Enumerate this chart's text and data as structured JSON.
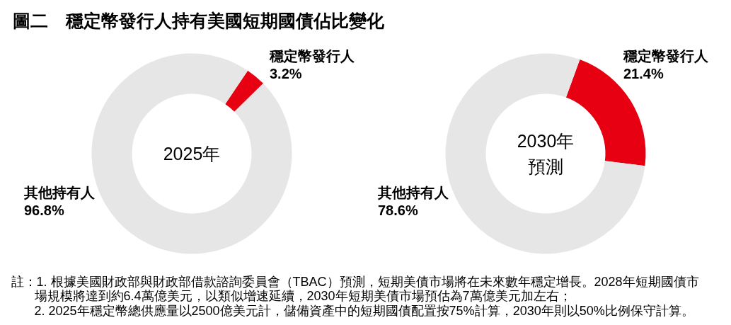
{
  "chart_data": [
    {
      "type": "other",
      "title": "圖二　穩定幣發行人持有美國短期國債佔比變化"
    },
    {
      "type": "donut",
      "title": "2025年",
      "categories": [
        "穩定幣發行人",
        "其他持有人"
      ],
      "values": [
        3.2,
        96.8
      ],
      "colors": [
        "#e60012",
        "#e6e6e6"
      ],
      "value_labels": [
        "3.2%",
        "96.8%"
      ]
    },
    {
      "type": "donut",
      "title": "2030年預測",
      "categories": [
        "穩定幣發行人",
        "其他持有人"
      ],
      "values": [
        21.4,
        78.6
      ],
      "colors": [
        "#e60012",
        "#e6e6e6"
      ],
      "value_labels": [
        "21.4%",
        "78.6%"
      ]
    },
    {
      "type": "other",
      "annotations": [
        "註：1. 根據美國財政部與財政部借款諮詢委員會（TBAC）預測，短期美債市場將在未來數年穩定增長。2028年短期國債市場規模將達到約6.4萬億美元，以類似增速延續，2030年短期美債市場預估為7萬億美元加左右；",
        "2. 2025年穩定幣總供應量以2500億美元計，儲備資產中的短期國債配置按75%計算，2030年則以50%比例保守計算。"
      ]
    }
  ]
}
